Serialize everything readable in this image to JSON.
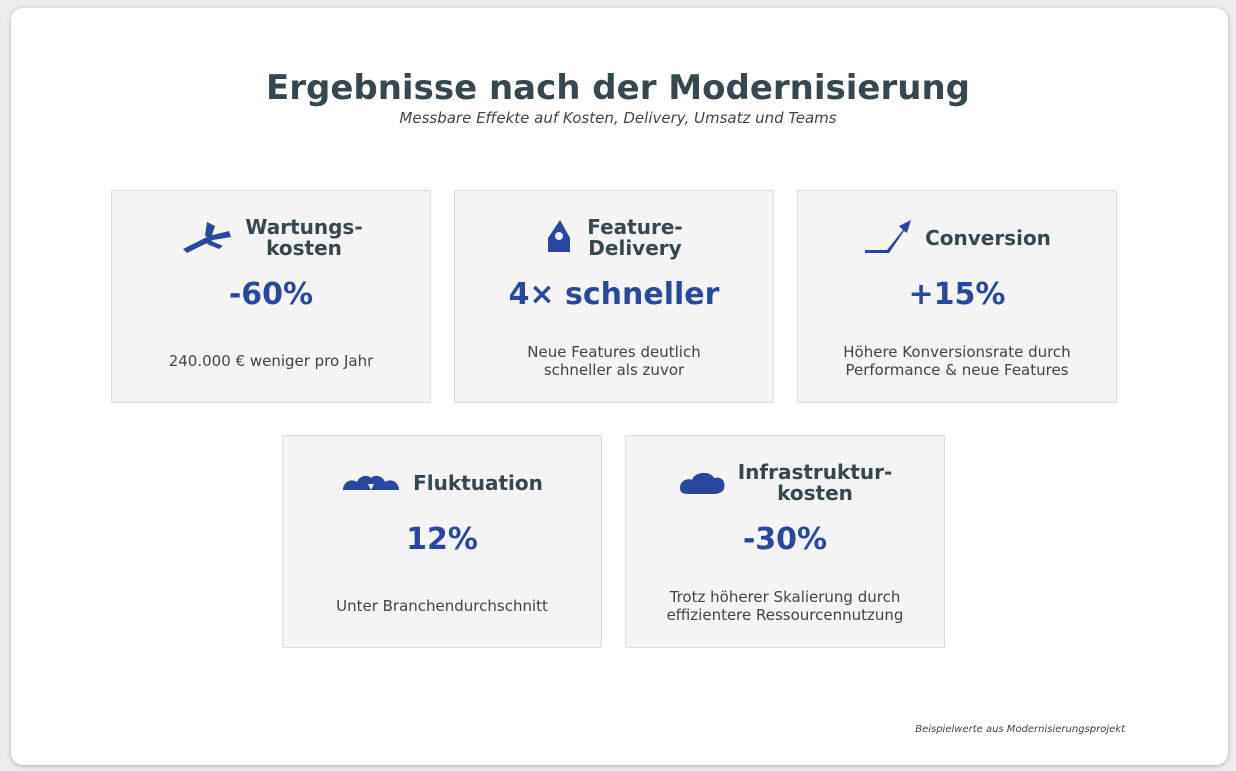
{
  "header": {
    "title": "Ergebnisse nach der Modernisierung",
    "subtitle": "Messbare Effekte auf Kosten, Delivery, Umsatz und Teams"
  },
  "cards": [
    {
      "title_lines": [
        "Wartungs-",
        "kosten"
      ],
      "value": "-60%",
      "description_lines": [
        "240.000 € weniger pro Jahr"
      ]
    },
    {
      "title_lines": [
        "Feature-",
        "Delivery"
      ],
      "value": "4× schneller",
      "description_lines": [
        "Neue Features deutlich",
        "schneller als zuvor"
      ]
    },
    {
      "title_lines": [
        "Conversion"
      ],
      "value": "+15%",
      "description_lines": [
        "Höhere Konversionsrate durch",
        "Performance & neue Features"
      ]
    },
    {
      "title_lines": [
        "Fluktuation"
      ],
      "value": "12%",
      "description_lines": [
        "Unter Branchendurchschnitt"
      ]
    },
    {
      "title_lines": [
        "Infrastruktur-",
        "kosten"
      ],
      "value": "-30%",
      "description_lines": [
        "Trotz höherer Skalierung durch",
        "effizientere Ressourcennutzung"
      ]
    }
  ],
  "footer": {
    "note": "Beispielwerte aus Modernisierungsprojekt"
  }
}
